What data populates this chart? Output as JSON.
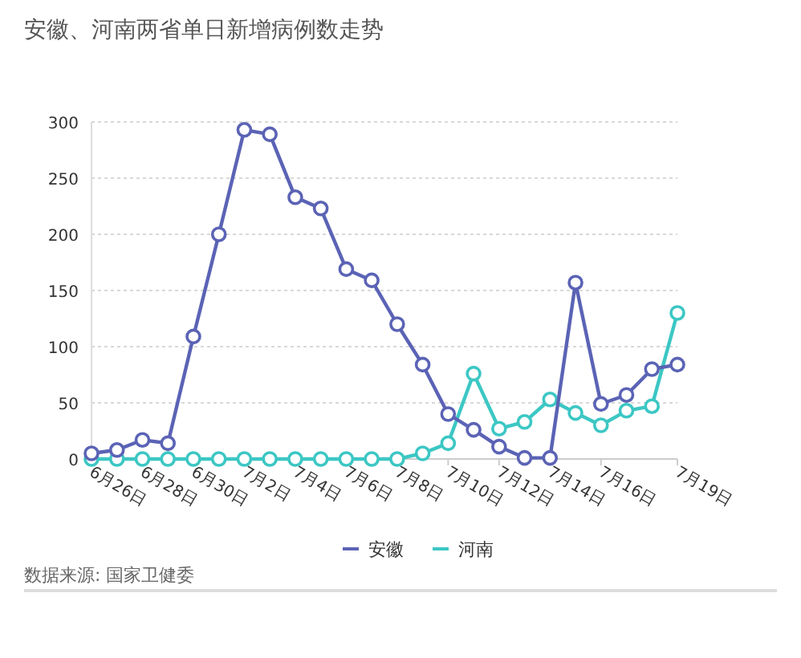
{
  "chart_data": {
    "type": "line",
    "title": "安徽、河南两省单日新增病例数走势",
    "categories": [
      "6月26日",
      null,
      "6月28日",
      null,
      "6月30日",
      null,
      "7月2日",
      null,
      "7月4日",
      null,
      "7月6日",
      null,
      "7月8日",
      null,
      "7月10日",
      null,
      "7月12日",
      null,
      "7月14日",
      null,
      "7月16日",
      null,
      null,
      "7月19日"
    ],
    "series": [
      {
        "name": "安徽",
        "color": "#5b63b5",
        "values": [
          5,
          8,
          17,
          14,
          109,
          200,
          293,
          289,
          233,
          223,
          169,
          159,
          120,
          84,
          40,
          26,
          11,
          1,
          1,
          157,
          49,
          57,
          80,
          84
        ]
      },
      {
        "name": "河南",
        "color": "#3cc7c4",
        "values": [
          0,
          0,
          0,
          0,
          0,
          0,
          0,
          0,
          0,
          0,
          0,
          0,
          0,
          5,
          14,
          76,
          27,
          33,
          53,
          41,
          30,
          43,
          47,
          130
        ]
      }
    ],
    "ylim": [
      0,
      300
    ],
    "yticks": [
      0,
      50,
      100,
      150,
      200,
      250,
      300
    ],
    "grid": "y",
    "legend": "bottom",
    "marker": "circle",
    "annotations": [
      "数据来源: 国家卫健委"
    ]
  }
}
